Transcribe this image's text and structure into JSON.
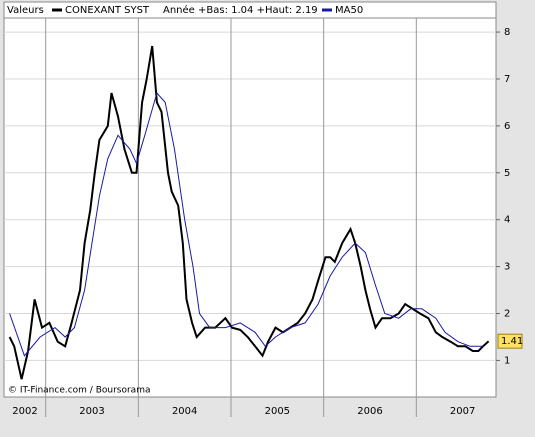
{
  "chart_data": {
    "type": "line",
    "legend_title": "Valeurs",
    "annotation": "Année +Bas: 1.04 +Haut: 2.19",
    "source": "© IT-Finance.com / Boursorama",
    "xlim": [
      2002.55,
      2007.86
    ],
    "xticks": [
      {
        "value": 2002,
        "label": "2002"
      },
      {
        "value": 2003,
        "label": "2003"
      },
      {
        "value": 2004,
        "label": "2004"
      },
      {
        "value": 2005,
        "label": "2005"
      },
      {
        "value": 2006,
        "label": "2006"
      },
      {
        "value": 2007,
        "label": "2007"
      }
    ],
    "ylim": [
      0.22,
      8.3
    ],
    "yticks": [
      1,
      2,
      3,
      4,
      5,
      6,
      7,
      8
    ],
    "grid": true,
    "series": [
      {
        "name": "CONEXANT SYST",
        "color": "#000000",
        "x": [
          2002.61,
          2002.66,
          2002.74,
          2002.81,
          2002.88,
          2002.96,
          2003.04,
          2003.13,
          2003.21,
          2003.28,
          2003.37,
          2003.42,
          2003.48,
          2003.53,
          2003.58,
          2003.67,
          2003.71,
          2003.78,
          2003.85,
          2003.93,
          2003.98,
          2004.04,
          2004.09,
          2004.15,
          2004.2,
          2004.25,
          2004.32,
          2004.36,
          2004.43,
          2004.48,
          2004.52,
          2004.58,
          2004.63,
          2004.72,
          2004.83,
          2004.94,
          2005.01,
          2005.1,
          2005.18,
          2005.26,
          2005.34,
          2005.4,
          2005.48,
          2005.56,
          2005.64,
          2005.72,
          2005.8,
          2005.88,
          2005.94,
          2006.02,
          2006.07,
          2006.12,
          2006.2,
          2006.29,
          2006.34,
          2006.4,
          2006.45,
          2006.5,
          2006.56,
          2006.63,
          2006.72,
          2006.81,
          2006.88,
          2006.96,
          2007.04,
          2007.13,
          2007.21,
          2007.28,
          2007.37,
          2007.45,
          2007.53,
          2007.61,
          2007.67,
          2007.72,
          2007.78
        ],
        "values": [
          1.5,
          1.3,
          0.6,
          1.2,
          2.3,
          1.7,
          1.8,
          1.4,
          1.3,
          1.8,
          2.5,
          3.5,
          4.2,
          5.0,
          5.7,
          6.0,
          6.7,
          6.2,
          5.5,
          5.0,
          5.0,
          6.5,
          7.0,
          7.7,
          6.5,
          6.3,
          5.0,
          4.6,
          4.3,
          3.5,
          2.3,
          1.8,
          1.5,
          1.7,
          1.7,
          1.9,
          1.7,
          1.65,
          1.5,
          1.3,
          1.1,
          1.4,
          1.7,
          1.6,
          1.7,
          1.8,
          2.0,
          2.3,
          2.7,
          3.2,
          3.2,
          3.1,
          3.5,
          3.8,
          3.5,
          3.0,
          2.5,
          2.1,
          1.7,
          1.9,
          1.9,
          2.0,
          2.2,
          2.1,
          2.0,
          1.9,
          1.6,
          1.5,
          1.4,
          1.3,
          1.3,
          1.2,
          1.2,
          1.3,
          1.41
        ]
      },
      {
        "name": "MA50",
        "color": "#1a1aa0",
        "x": [
          2002.61,
          2002.77,
          2002.94,
          2003.1,
          2003.21,
          2003.31,
          2003.42,
          2003.5,
          2003.58,
          2003.67,
          2003.78,
          2003.91,
          2003.98,
          2004.07,
          2004.2,
          2004.29,
          2004.39,
          2004.5,
          2004.59,
          2004.66,
          2004.77,
          2004.94,
          2005.1,
          2005.26,
          2005.37,
          2005.48,
          2005.64,
          2005.8,
          2005.94,
          2006.07,
          2006.2,
          2006.34,
          2006.45,
          2006.56,
          2006.66,
          2006.81,
          2006.94,
          2007.06,
          2007.21,
          2007.31,
          2007.45,
          2007.58,
          2007.72
        ],
        "values": [
          2.0,
          1.1,
          1.5,
          1.7,
          1.5,
          1.7,
          2.5,
          3.5,
          4.5,
          5.3,
          5.8,
          5.5,
          5.2,
          5.8,
          6.7,
          6.5,
          5.5,
          4.0,
          3.0,
          2.0,
          1.7,
          1.7,
          1.8,
          1.6,
          1.3,
          1.5,
          1.7,
          1.8,
          2.2,
          2.8,
          3.2,
          3.5,
          3.3,
          2.6,
          2.0,
          1.9,
          2.1,
          2.1,
          1.9,
          1.6,
          1.4,
          1.3,
          1.3
        ]
      }
    ]
  }
}
